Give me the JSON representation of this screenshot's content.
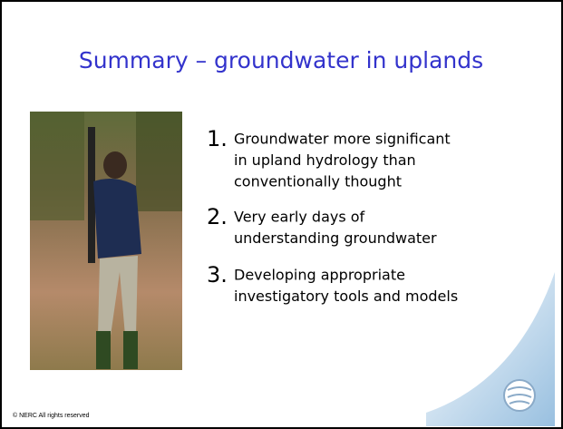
{
  "slide": {
    "title": "Summary – groundwater in uplands",
    "items": [
      {
        "number": "1.",
        "lines": [
          "Groundwater more significant",
          "in upland hydrology than",
          "conventionally thought"
        ]
      },
      {
        "number": "2.",
        "lines": [
          "Very early days of",
          "understanding groundwater"
        ]
      },
      {
        "number": "3.",
        "lines": [
          "Developing appropriate",
          "investigatory tools and models"
        ]
      }
    ],
    "footer": "© NERC All rights reserved"
  }
}
